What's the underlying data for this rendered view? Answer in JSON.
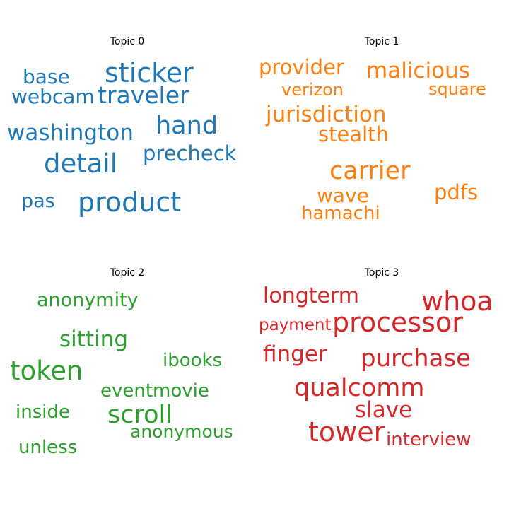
{
  "chart_data": [
    {
      "type": "wordcloud",
      "title": "Topic 0",
      "color": "#1f77b4",
      "words": [
        "sticker",
        "base",
        "webcam",
        "traveler",
        "washington",
        "hand",
        "detail",
        "precheck",
        "pas",
        "product"
      ]
    },
    {
      "type": "wordcloud",
      "title": "Topic 1",
      "color": "#ff7f0e",
      "words": [
        "provider",
        "malicious",
        "verizon",
        "square",
        "jurisdiction",
        "stealth",
        "carrier",
        "wave",
        "pdfs",
        "hamachi"
      ]
    },
    {
      "type": "wordcloud",
      "title": "Topic 2",
      "color": "#2ca02c",
      "words": [
        "anonymity",
        "sitting",
        "ibooks",
        "token",
        "eventmovie",
        "inside",
        "scroll",
        "anonymous",
        "unless"
      ]
    },
    {
      "type": "wordcloud",
      "title": "Topic 3",
      "color": "#d62728",
      "words": [
        "longterm",
        "whoa",
        "payment",
        "processor",
        "finger",
        "purchase",
        "qualcomm",
        "slave",
        "tower",
        "interview"
      ]
    }
  ]
}
